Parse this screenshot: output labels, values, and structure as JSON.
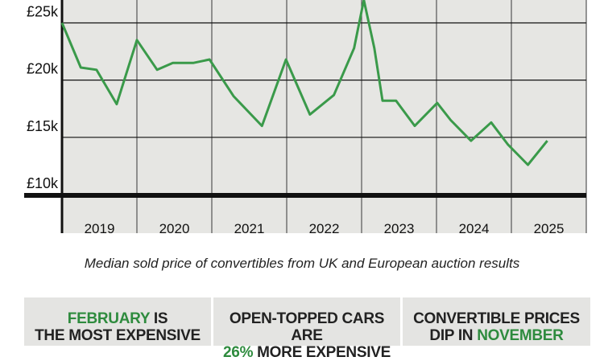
{
  "chart_data": {
    "type": "line",
    "caption": "Median sold price of convertibles from UK and European auction results",
    "x_labels": [
      "2019",
      "2020",
      "2021",
      "2022",
      "2023",
      "2024",
      "2025"
    ],
    "xlim": [
      2019,
      2026
    ],
    "xticks": [
      2019,
      2020,
      2021,
      2022,
      2023,
      2024,
      2025,
      2026
    ],
    "ylim": [
      10,
      27
    ],
    "yticks": [
      {
        "value": 10,
        "label": "£10k"
      },
      {
        "value": 15,
        "label": "£15k"
      },
      {
        "value": 20,
        "label": "£20k"
      },
      {
        "value": 25,
        "label": "£25k"
      }
    ],
    "series": [
      {
        "color": "#3a9a4a",
        "x": [
          2019.0,
          2019.25,
          2019.46,
          2019.73,
          2020.0,
          2020.27,
          2020.48,
          2020.75,
          2020.97,
          2021.29,
          2021.67,
          2021.99,
          2022.31,
          2022.63,
          2022.9,
          2023.03,
          2023.17,
          2023.28,
          2023.46,
          2023.71,
          2024.01,
          2024.19,
          2024.46,
          2024.73,
          2024.95,
          2025.22,
          2025.48
        ],
        "values": [
          25.0,
          21.1,
          20.9,
          17.9,
          23.5,
          20.9,
          21.5,
          21.5,
          21.8,
          18.6,
          16.0,
          21.8,
          17.0,
          18.7,
          22.8,
          27.0,
          22.8,
          18.2,
          18.2,
          16.0,
          18.0,
          16.5,
          14.7,
          16.3,
          14.4,
          12.6,
          14.7
        ]
      }
    ]
  },
  "boxes": [
    {
      "line1_hl": "FEBRUARY",
      "line1": " IS",
      "line2": "THE MOST EXPENSIVE"
    },
    {
      "line1": "OPEN-TOPPED CARS ARE",
      "line2_hl": "26%",
      "line2": " MORE EXPENSIVE"
    },
    {
      "line1": "CONVERTIBLE PRICES",
      "line2": "DIP IN ",
      "line2_hl": "NOVEMBER"
    }
  ]
}
